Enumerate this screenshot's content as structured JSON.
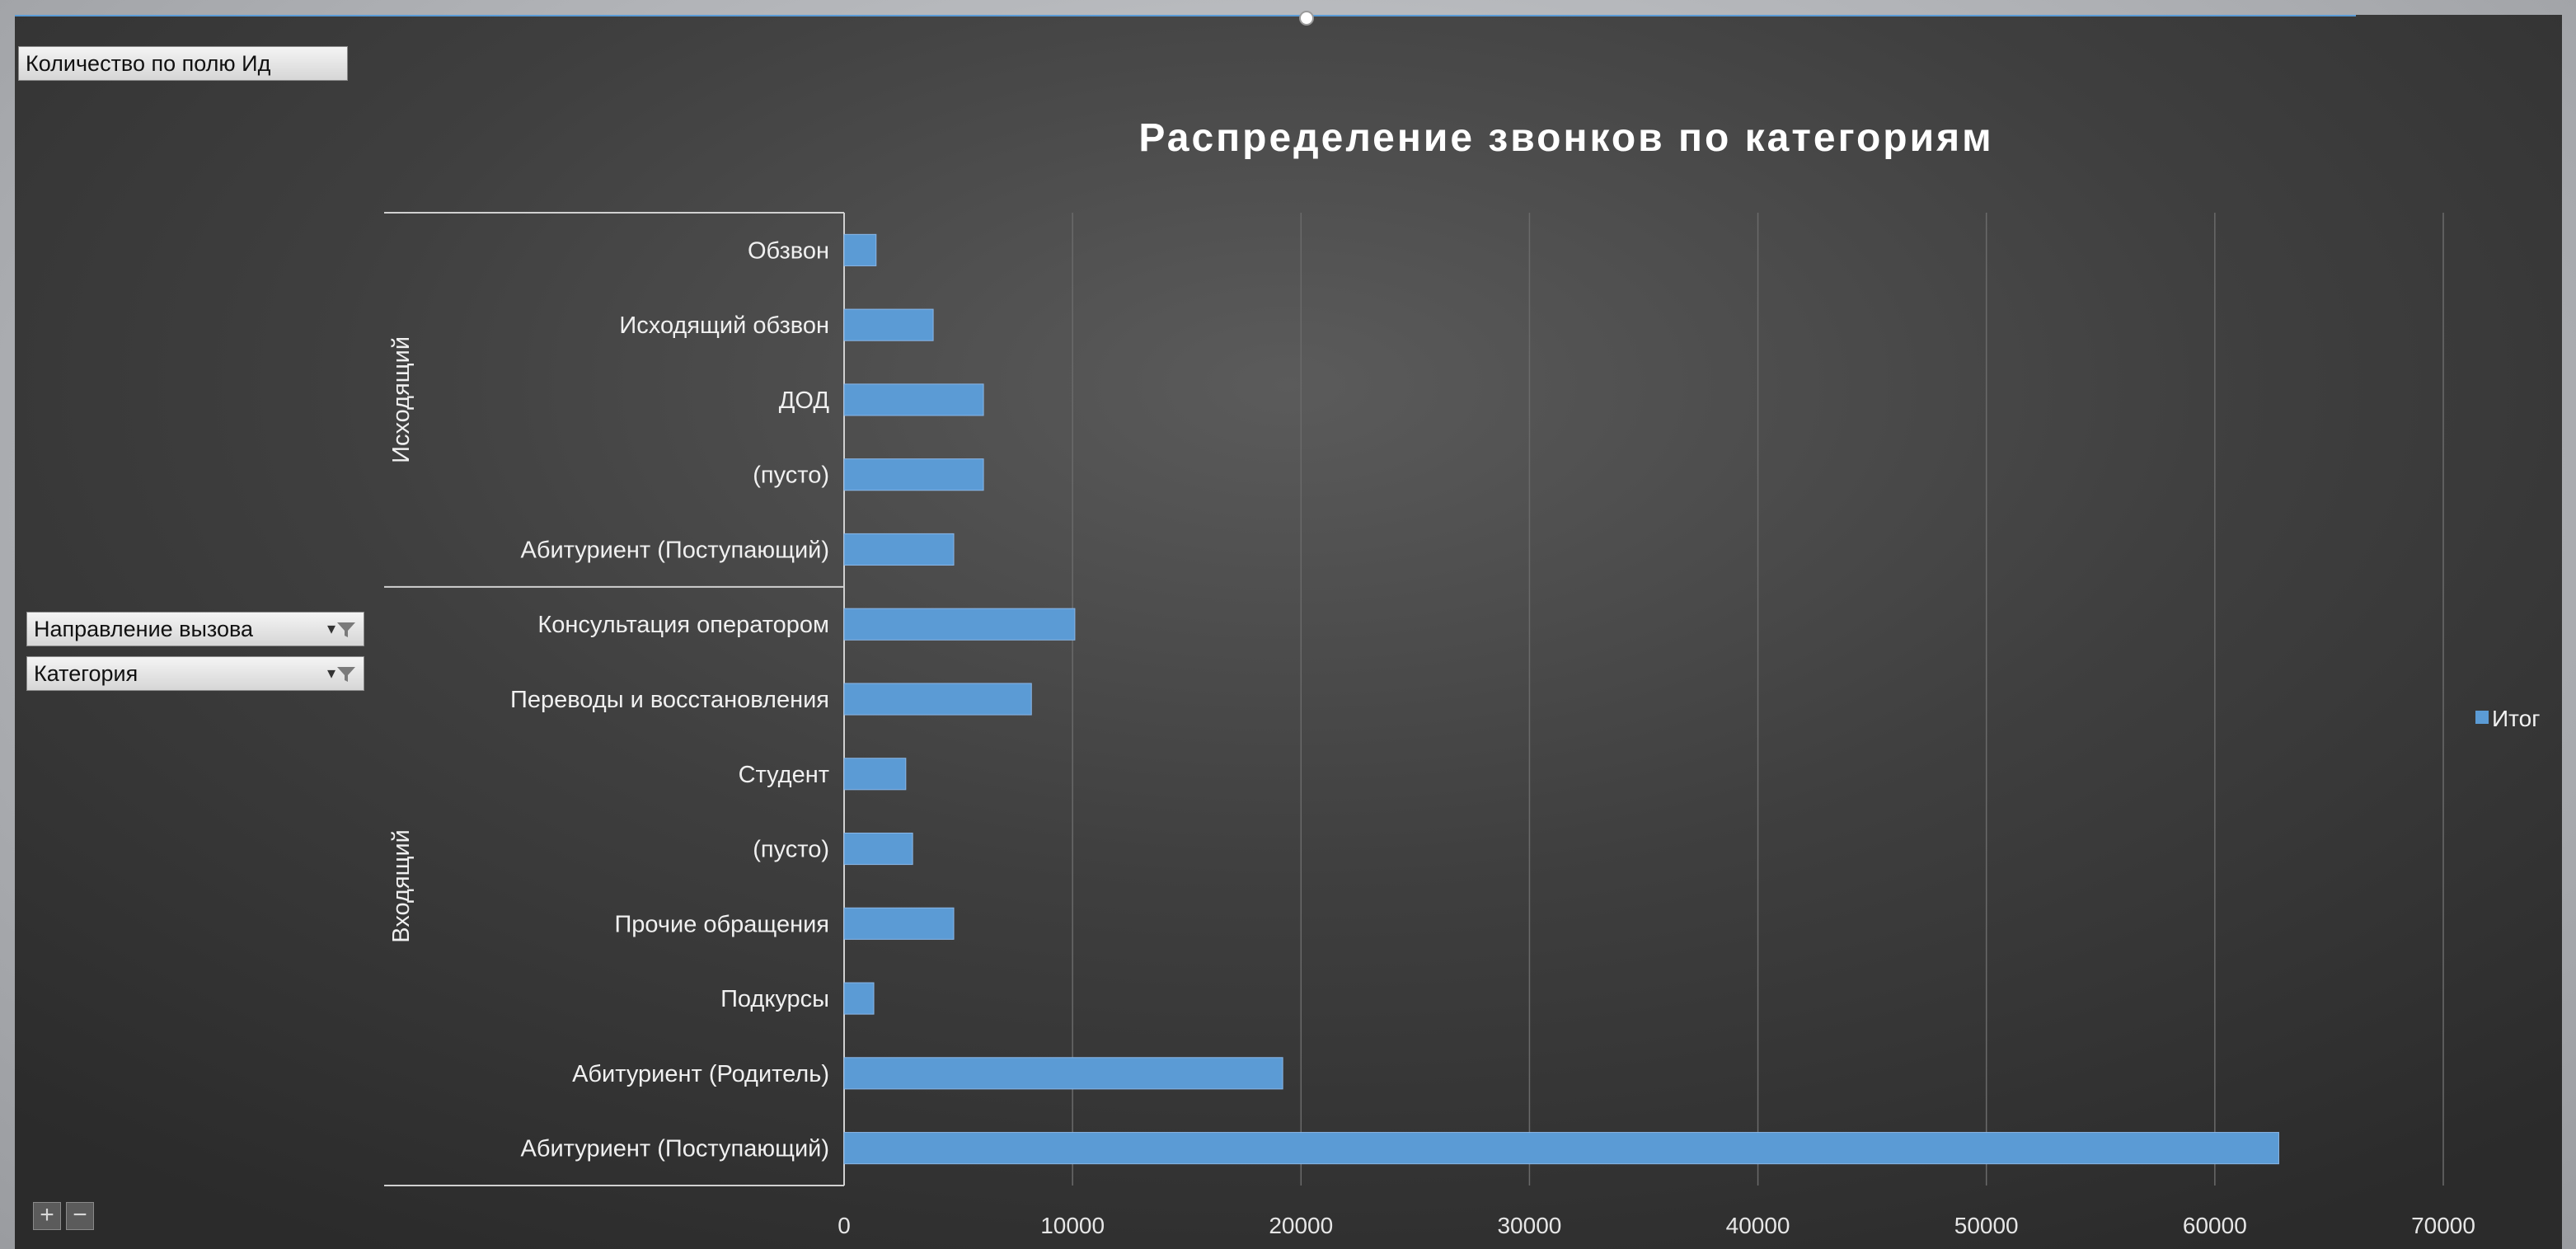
{
  "pivot": {
    "value_field": "Количество по полю Ид",
    "row_fields": [
      "Направление вызова",
      "Категория"
    ]
  },
  "colors": {
    "bar": "#5b9bd5",
    "background": "#404040",
    "text": "#f2f2f2"
  },
  "icons": {
    "filter": "filter-icon",
    "dropdown": "dropdown-arrow-icon"
  },
  "zoom": {
    "expand": "+",
    "collapse": "−"
  },
  "chart_data": {
    "type": "bar",
    "orientation": "horizontal",
    "title": "Распределение звонков по категориям",
    "xlabel": "",
    "ylabel": "",
    "xlim": [
      0,
      70000
    ],
    "x_ticks": [
      0,
      10000,
      20000,
      30000,
      40000,
      50000,
      60000,
      70000
    ],
    "grid": true,
    "legend_position": "right",
    "groups": [
      {
        "name": "Исходящий",
        "categories": [
          "Обзвон",
          "Исходящий обзвон",
          "ДОД",
          "(пусто)",
          "Абитуриент (Поступающий)"
        ]
      },
      {
        "name": "Входящий",
        "categories": [
          "Консультация оператором",
          "Переводы и восстановления",
          "Студент",
          "(пусто)",
          "Прочие обращения",
          "Подкурсы",
          "Абитуриент (Родитель)",
          "Абитуриент (Поступающий)"
        ]
      }
    ],
    "series": [
      {
        "name": "Итог",
        "values": [
          1400,
          3900,
          6100,
          6100,
          4800,
          10100,
          8200,
          2700,
          3000,
          4800,
          1300,
          19200,
          62800
        ]
      }
    ]
  }
}
